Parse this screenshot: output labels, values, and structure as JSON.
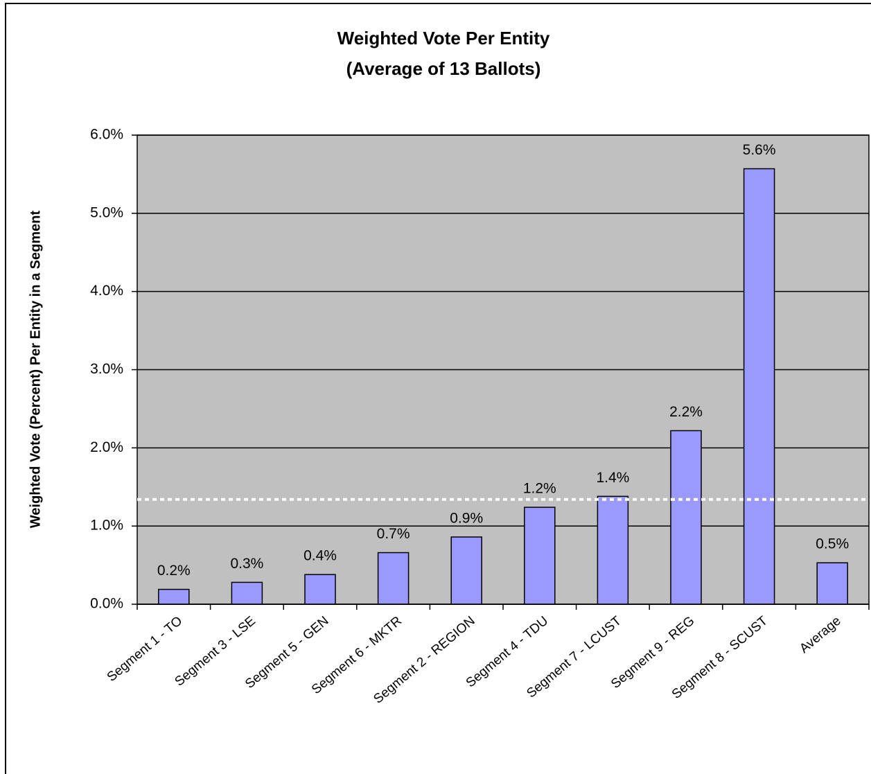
{
  "chart_data": {
    "type": "bar",
    "title": "Weighted Vote Per Entity",
    "subtitle": "(Average of 13 Ballots)",
    "y_label": "Weighted Vote (Percent) Per Entity in a Segment",
    "categories": [
      "Segment 1 - TO",
      "Segment 3 - LSE",
      "Segment 5 - GEN",
      "Segment 6 - MKTR",
      "Segment 2 - REGION",
      "Segment 4 - TDU",
      "Segment 7 - LCUST",
      "Segment 9 - REG",
      "Segment 8 - SCUST",
      "Average"
    ],
    "values": [
      0.19,
      0.28,
      0.38,
      0.66,
      0.86,
      1.24,
      1.38,
      2.22,
      5.57,
      0.53
    ],
    "value_labels": [
      "0.2%",
      "0.3%",
      "0.4%",
      "0.7%",
      "0.9%",
      "1.2%",
      "1.4%",
      "2.2%",
      "5.6%",
      "0.5%"
    ],
    "color": "#9999ff",
    "plot_background": "#c0c0c0",
    "ylim": [
      0,
      6
    ],
    "yticks": [
      {
        "value": 0,
        "label": "0.0%"
      },
      {
        "value": 1,
        "label": "1.0%"
      },
      {
        "value": 2,
        "label": "2.0%"
      },
      {
        "value": 3,
        "label": "3.0%"
      },
      {
        "value": 4,
        "label": "4.0%"
      },
      {
        "value": 5,
        "label": "5.0%"
      },
      {
        "value": 6,
        "label": "6.0%"
      }
    ],
    "grid": true,
    "reference_line": {
      "value": 1.34,
      "color": "#ffffff"
    }
  }
}
